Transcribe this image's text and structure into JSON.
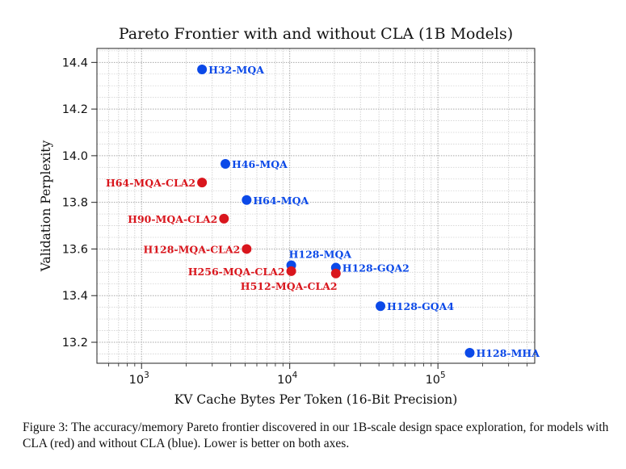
{
  "chart_data": {
    "type": "scatter",
    "title": "Pareto Frontier with and without CLA (1B Models)",
    "xlabel": "KV Cache Bytes Per Token (16-Bit Precision)",
    "ylabel": "Validation Perplexity",
    "x_scale": "log",
    "xlim": [
      500,
      450000
    ],
    "ylim": [
      13.11,
      14.46
    ],
    "x_ticks": [
      {
        "value": 1000,
        "base": "10",
        "exp": "3"
      },
      {
        "value": 10000,
        "base": "10",
        "exp": "4"
      },
      {
        "value": 100000,
        "base": "10",
        "exp": "5"
      }
    ],
    "y_ticks": [
      {
        "value": 13.2,
        "label": "13.2"
      },
      {
        "value": 13.4,
        "label": "13.4"
      },
      {
        "value": 13.6,
        "label": "13.6"
      },
      {
        "value": 13.8,
        "label": "13.8"
      },
      {
        "value": 14.0,
        "label": "14.0"
      },
      {
        "value": 14.2,
        "label": "14.2"
      },
      {
        "value": 14.4,
        "label": "14.4"
      }
    ],
    "grid": true,
    "series": [
      {
        "color": "#0b49e8",
        "points": [
          {
            "x": 2560,
            "y": 14.37,
            "label": "H32-MQA",
            "label_pos": "right"
          },
          {
            "x": 3680,
            "y": 13.965,
            "label": "H46-MQA",
            "label_pos": "right"
          },
          {
            "x": 5120,
            "y": 13.81,
            "label": "H64-MQA",
            "label_pos": "right"
          },
          {
            "x": 10240,
            "y": 13.53,
            "label": "H128-MQA",
            "label_pos": "above"
          },
          {
            "x": 20480,
            "y": 13.52,
            "label": "H128-GQA2",
            "label_pos": "right"
          },
          {
            "x": 40960,
            "y": 13.355,
            "label": "H128-GQA4",
            "label_pos": "right"
          },
          {
            "x": 163840,
            "y": 13.155,
            "label": "H128-MHA",
            "label_pos": "right"
          }
        ]
      },
      {
        "color": "#d9161d",
        "points": [
          {
            "x": 2560,
            "y": 13.885,
            "label": "H64-MQA-CLA2",
            "label_pos": "left"
          },
          {
            "x": 3600,
            "y": 13.73,
            "label": "H90-MQA-CLA2",
            "label_pos": "left"
          },
          {
            "x": 5120,
            "y": 13.6,
            "label": "H128-MQA-CLA2",
            "label_pos": "left"
          },
          {
            "x": 10240,
            "y": 13.505,
            "label": "H256-MQA-CLA2",
            "label_pos": "left"
          },
          {
            "x": 20480,
            "y": 13.495,
            "label": "H512-MQA-CLA2",
            "label_pos": "below"
          }
        ]
      }
    ]
  },
  "caption": "Figure 3: The accuracy/memory Pareto frontier discovered in our 1B-scale design space exploration, for models with CLA (red) and without CLA (blue). Lower is better on both axes."
}
